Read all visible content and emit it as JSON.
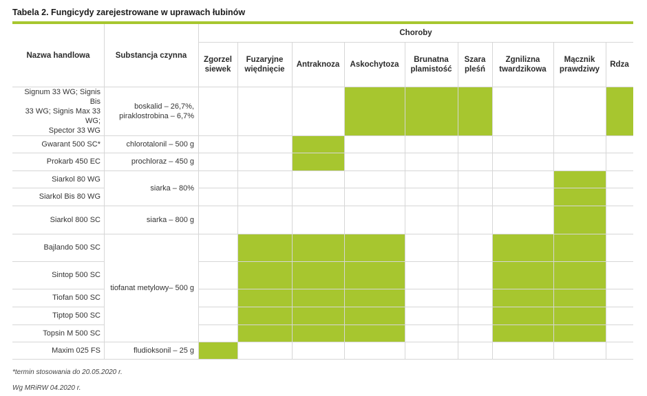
{
  "title": "Tabela 2. Fungicydy zarejestrowane w  uprawach łubinów",
  "accent_color": "#a7c62f",
  "headers": {
    "trade_name": "Nazwa handlowa",
    "active_substance": "Substancja czynna",
    "diseases_group": "Choroby",
    "diseases": [
      [
        "Zgorzel",
        "siewek"
      ],
      [
        "Fuzaryjne",
        "więdnięcie"
      ],
      [
        "Antraknoza"
      ],
      [
        "Askochytoza"
      ],
      [
        "Brunatna",
        "plamistość"
      ],
      [
        "Szara",
        "pleśń"
      ],
      [
        "Zgnilizna",
        "twardzikowa"
      ],
      [
        "Mącznik",
        "prawdziwy"
      ],
      [
        "Rdza"
      ]
    ]
  },
  "rows": [
    {
      "trade_name": [
        "Signum 33 WG; Signis Bis",
        "33 WG; Signis Max 33 WG;",
        "Spector 33 WG"
      ],
      "registered": [
        3,
        4,
        5,
        8
      ]
    },
    {
      "trade_name": [
        "Gwarant 500 SC*"
      ],
      "registered": [
        2
      ]
    },
    {
      "trade_name": [
        "Prokarb 450 EC"
      ],
      "registered": [
        2
      ]
    },
    {
      "trade_name": [
        "Siarkol 80 WG"
      ],
      "registered": [
        7
      ]
    },
    {
      "trade_name": [
        "Siarkol Bis 80 WG"
      ],
      "registered": [
        7
      ]
    },
    {
      "trade_name": [
        "Siarkol 800 SC"
      ],
      "registered": [
        7
      ]
    },
    {
      "trade_name": [
        "Bajlando 500 SC"
      ],
      "registered": [
        1,
        2,
        3,
        6,
        7
      ]
    },
    {
      "trade_name": [
        "Sintop 500 SC"
      ],
      "registered": [
        1,
        2,
        3,
        6,
        7
      ]
    },
    {
      "trade_name": [
        "Tiofan 500 SC"
      ],
      "registered": [
        1,
        2,
        3,
        6,
        7
      ]
    },
    {
      "trade_name": [
        "Tiptop 500 SC"
      ],
      "registered": [
        1,
        2,
        3,
        6,
        7
      ]
    },
    {
      "trade_name": [
        "Topsin M 500 SC"
      ],
      "registered": [
        1,
        2,
        3,
        6,
        7
      ]
    },
    {
      "trade_name": [
        "Maxim 025 FS"
      ],
      "registered": [
        0
      ]
    }
  ],
  "substances": [
    {
      "text": [
        "boskalid – 26,7%,",
        "piraklostrobina – 6,7%"
      ],
      "rows": [
        0
      ]
    },
    {
      "text": [
        "chlorotalonil – 500 g"
      ],
      "rows": [
        1
      ]
    },
    {
      "text": [
        "prochloraz – 450 g"
      ],
      "rows": [
        2
      ]
    },
    {
      "text": [
        "siarka – 80%"
      ],
      "rows": [
        3,
        4
      ]
    },
    {
      "text": [
        "siarka – 800 g"
      ],
      "rows": [
        5
      ]
    },
    {
      "text": [
        "tiofanat metylowy– 500 g"
      ],
      "rows": [
        6,
        7,
        8,
        9,
        10
      ]
    },
    {
      "text": [
        "fludioksonil – 25 g"
      ],
      "rows": [
        11
      ]
    }
  ],
  "footnote": "*termin stosowania do 20.05.2020 r.",
  "source": "Wg MRiRW 04.2020 r."
}
